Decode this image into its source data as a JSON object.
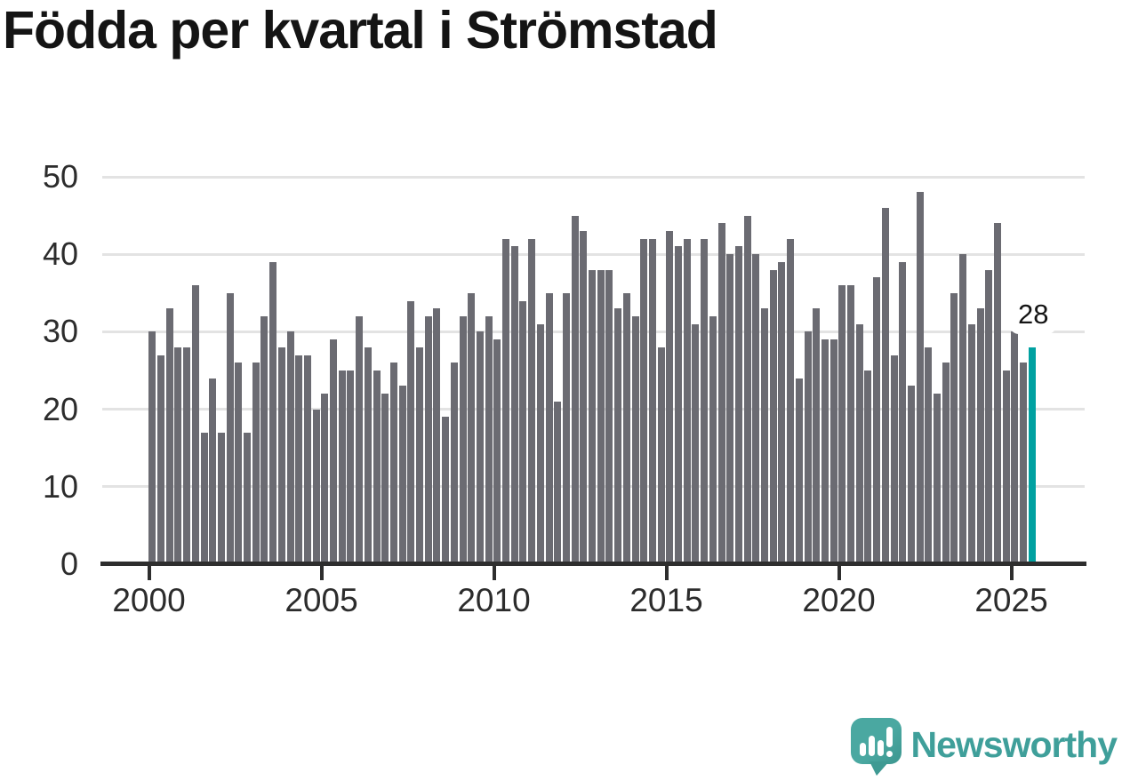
{
  "title": "Födda per kvartal i Strömstad",
  "annotation": {
    "label": "28"
  },
  "logo": {
    "text": "Newsworthy",
    "icon": "newsworthy-speech-bubble-bar-chart-icon"
  },
  "colors": {
    "bar": "#6b6b72",
    "highlight": "#00a1a1",
    "grid": "#e3e3e3",
    "axis": "#2e2e2e",
    "axis_text": "#2c2c2c",
    "title_text": "#141414",
    "logo_teal": "#3f9f9a",
    "annotation_bg": "#ffffff"
  },
  "chart_data": {
    "type": "bar",
    "title": "Födda per kvartal i Strömstad",
    "frequency": "quarterly",
    "start": "2000-Q1",
    "end": "2025-Q3",
    "ylim": [
      0,
      50
    ],
    "y_ticks": [
      0,
      10,
      20,
      30,
      40,
      50
    ],
    "x_tick_labels": [
      "2000",
      "2005",
      "2010",
      "2015",
      "2020",
      "2025"
    ],
    "grid": "horizontal",
    "legend": "none",
    "highlight_last_bar": true,
    "last_bar_value_label": "28",
    "years": [
      {
        "year": 2000,
        "values": [
          30,
          27,
          33,
          28
        ]
      },
      {
        "year": 2001,
        "values": [
          28,
          36,
          17,
          24
        ]
      },
      {
        "year": 2002,
        "values": [
          17,
          35,
          26,
          17
        ]
      },
      {
        "year": 2003,
        "values": [
          26,
          32,
          39,
          28
        ]
      },
      {
        "year": 2004,
        "values": [
          30,
          27,
          27,
          20
        ]
      },
      {
        "year": 2005,
        "values": [
          22,
          29,
          25,
          25
        ]
      },
      {
        "year": 2006,
        "values": [
          32,
          28,
          25,
          22
        ]
      },
      {
        "year": 2007,
        "values": [
          26,
          23,
          34,
          28
        ]
      },
      {
        "year": 2008,
        "values": [
          32,
          33,
          19,
          26
        ]
      },
      {
        "year": 2009,
        "values": [
          32,
          35,
          30,
          32
        ]
      },
      {
        "year": 2010,
        "values": [
          29,
          42,
          41,
          34
        ]
      },
      {
        "year": 2011,
        "values": [
          42,
          31,
          35,
          21
        ]
      },
      {
        "year": 2012,
        "values": [
          35,
          45,
          43,
          38
        ]
      },
      {
        "year": 2013,
        "values": [
          38,
          38,
          33,
          35
        ]
      },
      {
        "year": 2014,
        "values": [
          32,
          42,
          42,
          28
        ]
      },
      {
        "year": 2015,
        "values": [
          43,
          41,
          42,
          31
        ]
      },
      {
        "year": 2016,
        "values": [
          42,
          32,
          44,
          40
        ]
      },
      {
        "year": 2017,
        "values": [
          41,
          45,
          40,
          33
        ]
      },
      {
        "year": 2018,
        "values": [
          38,
          39,
          42,
          24
        ]
      },
      {
        "year": 2019,
        "values": [
          30,
          33,
          29,
          29
        ]
      },
      {
        "year": 2020,
        "values": [
          36,
          36,
          31,
          25
        ]
      },
      {
        "year": 2021,
        "values": [
          37,
          46,
          27,
          39
        ]
      },
      {
        "year": 2022,
        "values": [
          23,
          48,
          28,
          22
        ]
      },
      {
        "year": 2023,
        "values": [
          26,
          35,
          40,
          31
        ]
      },
      {
        "year": 2024,
        "values": [
          33,
          38,
          44,
          25
        ]
      },
      {
        "year": 2025,
        "values": [
          30,
          26,
          28
        ]
      }
    ]
  }
}
